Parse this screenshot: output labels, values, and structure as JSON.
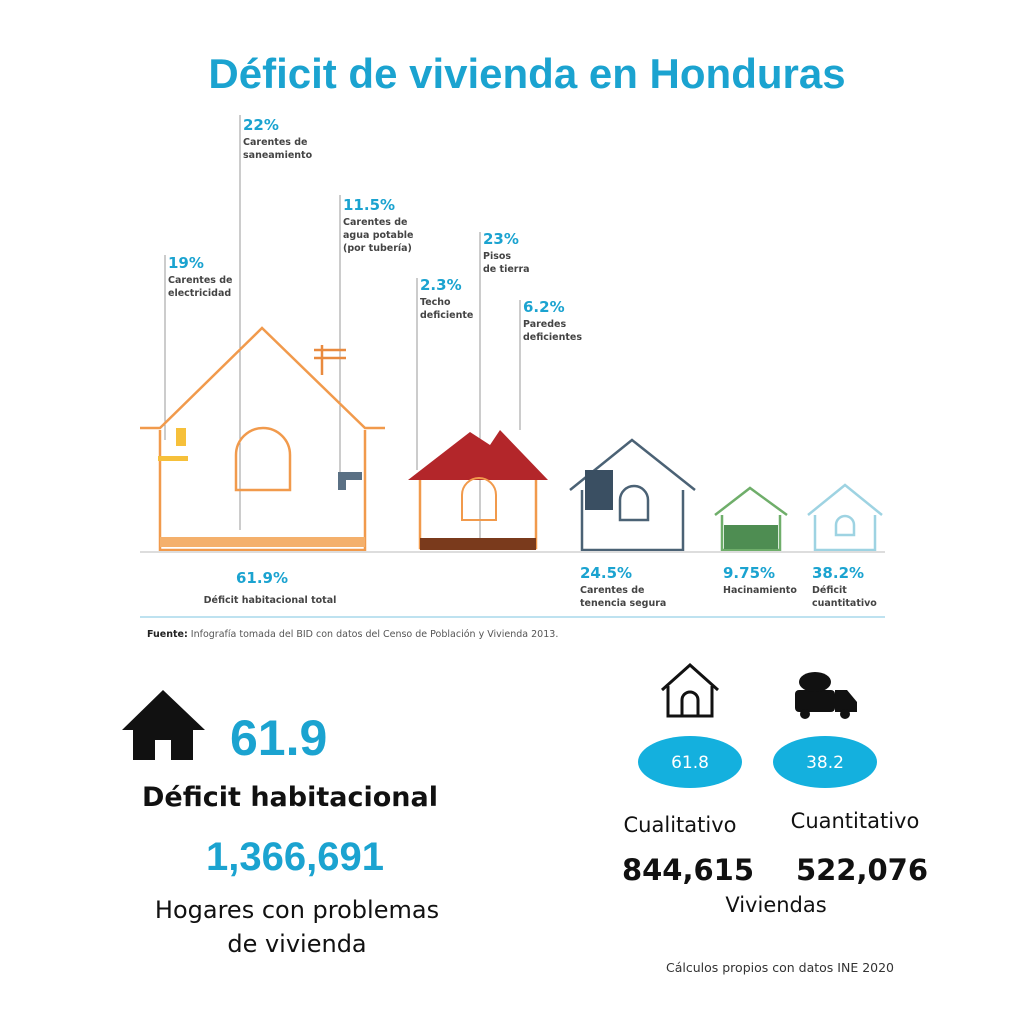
{
  "title": "Déficit de vivienda en Honduras",
  "callouts": [
    {
      "value": "19%",
      "lines": [
        "Carentes de",
        "electricidad"
      ]
    },
    {
      "value": "22%",
      "lines": [
        "Carentes de",
        "saneamiento"
      ]
    },
    {
      "value": "11.5%",
      "lines": [
        "Carentes de",
        "agua potable",
        "(por tubería)"
      ]
    },
    {
      "value": "2.3%",
      "lines": [
        "Techo",
        "deficiente"
      ]
    },
    {
      "value": "23%",
      "lines": [
        "Pisos",
        "de tierra"
      ]
    },
    {
      "value": "6.2%",
      "lines": [
        "Paredes",
        "deficientes"
      ]
    },
    {
      "value": "61.9%",
      "lines": [
        "Déficit habitacional total"
      ]
    },
    {
      "value": "24.5%",
      "lines": [
        "Carentes de",
        "tenencia segura"
      ]
    },
    {
      "value": "9.75%",
      "lines": [
        "Hacinamiento"
      ]
    },
    {
      "value": "38.2%",
      "lines": [
        "Déficit",
        "cuantitativo"
      ]
    }
  ],
  "source": {
    "label": "Fuente:",
    "text": "Infografía tomada del BID con datos del Censo de Población y Vivienda 2013."
  },
  "summary": {
    "value": "61.9",
    "label": "Déficit habitacional",
    "households": "1,366,691",
    "households_label": [
      "Hogares con problemas",
      "de vivienda"
    ]
  },
  "split": {
    "qualitative": {
      "value": "61.8",
      "label": "Cualitativo",
      "count": "844,615"
    },
    "quantitative": {
      "value": "38.2",
      "label": "Cuantitativo",
      "count": "522,076"
    },
    "unit": "Viviendas"
  },
  "note": "Cálculos propios con datos INE 2020"
}
